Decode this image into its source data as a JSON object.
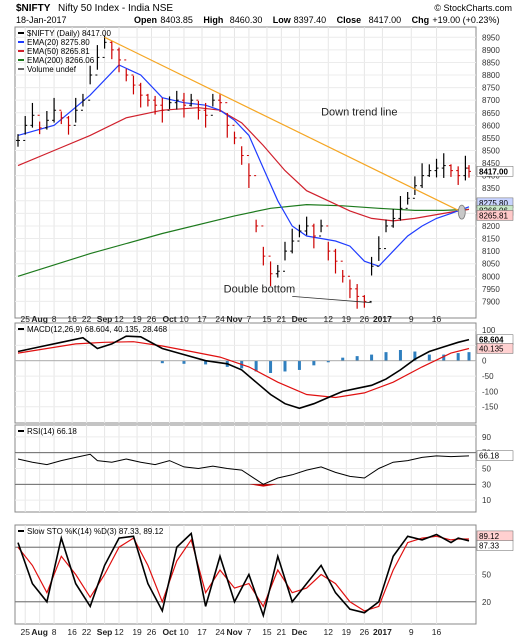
{
  "header": {
    "symbol": "$NIFTY",
    "name": "Nifty 50 Index - India NSE",
    "date": "18-Jan-2017",
    "source": "© StockCharts.com",
    "quote": [
      {
        "label": "Open",
        "value": "8403.85"
      },
      {
        "label": "High",
        "value": "8460.30"
      },
      {
        "label": "Low",
        "value": "8397.40"
      },
      {
        "label": "Close",
        "value": "8417.00"
      },
      {
        "label": "Chg",
        "value": "+19.00 (+0.23%)"
      }
    ]
  },
  "x_axis": {
    "labels": [
      "25",
      "Aug",
      "8",
      "16",
      "22",
      "Sep",
      "12",
      "19",
      "26",
      "Oct",
      "10",
      "17",
      "24",
      "Nov",
      "7",
      "15",
      "21",
      "Dec",
      "12",
      "19",
      "26",
      "2017",
      "9",
      "16"
    ],
    "bold": [
      "Aug",
      "Sep",
      "Oct",
      "Nov",
      "Dec",
      "2017"
    ]
  },
  "colors": {
    "price_up": "#000000",
    "price_down": "#cc0000",
    "ema20": "#1f3cff",
    "ema50": "#d0202c",
    "ema200": "#1d7a1d",
    "trend": "#f5a623",
    "macd_line": "#000000",
    "macd_signal": "#e01010",
    "macd_hist": "#2f7fbf",
    "rsi": "#000000",
    "sto_k": "#000000",
    "sto_d": "#e01010"
  },
  "chart_data": [
    {
      "type": "line",
      "panel": "price",
      "legend": [
        {
          "text": "$NIFTY (Daily) 8417.00",
          "color": "#000000"
        },
        {
          "text": "EMA(20) 8275.80",
          "color": "#1f3cff"
        },
        {
          "text": "EMA(50) 8265.81",
          "color": "#d0202c"
        },
        {
          "text": "EMA(200) 8266.06",
          "color": "#1d7a1d"
        },
        {
          "text": "Volume undef",
          "color": "#666666"
        }
      ],
      "ylim": [
        7850,
        8975
      ],
      "y_ticks": [
        7900,
        7950,
        8000,
        8050,
        8100,
        8150,
        8200,
        8250,
        8300,
        8350,
        8400,
        8450,
        8500,
        8550,
        8600,
        8650,
        8700,
        8750,
        8800,
        8850,
        8900,
        8950
      ],
      "x_index": "trading-day index (0 = ~19 Jul 2016, 125 = 18 Jan 2017)",
      "series": [
        {
          "name": "$NIFTY",
          "style": "bar",
          "x": [
            0,
            2,
            4,
            6,
            8,
            10,
            12,
            14,
            16,
            18,
            20,
            22,
            24,
            26,
            28,
            30,
            32,
            34,
            36,
            38,
            40,
            42,
            44,
            46,
            48,
            50,
            52,
            54,
            56,
            58,
            60,
            62,
            64,
            66,
            68,
            70,
            72,
            74,
            76,
            78,
            80,
            82,
            84,
            86,
            88,
            90,
            92,
            94,
            96,
            98,
            100,
            102,
            104,
            106,
            108,
            110,
            112,
            114,
            116,
            118,
            120,
            122,
            124,
            125
          ],
          "values": [
            8540,
            8600,
            8640,
            8590,
            8620,
            8660,
            8630,
            8600,
            8660,
            8700,
            8800,
            8870,
            8930,
            8900,
            8860,
            8800,
            8760,
            8720,
            8700,
            8680,
            8660,
            8690,
            8700,
            8680,
            8700,
            8660,
            8640,
            8700,
            8690,
            8600,
            8550,
            8480,
            8400,
            8200,
            8080,
            8010,
            8020,
            8100,
            8140,
            8180,
            8200,
            8160,
            8200,
            8100,
            8060,
            8000,
            7950,
            7920,
            7900,
            8040,
            8110,
            8200,
            8230,
            8270,
            8310,
            8360,
            8400,
            8420,
            8430,
            8440,
            8420,
            8400,
            8430,
            8417
          ]
        },
        {
          "name": "EMA(20)",
          "x": [
            0,
            10,
            20,
            28,
            34,
            40,
            46,
            52,
            56,
            60,
            64,
            68,
            72,
            76,
            80,
            84,
            88,
            92,
            96,
            100,
            104,
            108,
            112,
            116,
            120,
            125
          ],
          "values": [
            8560,
            8600,
            8720,
            8840,
            8800,
            8710,
            8690,
            8680,
            8660,
            8620,
            8560,
            8430,
            8300,
            8200,
            8160,
            8150,
            8140,
            8120,
            8060,
            8040,
            8100,
            8160,
            8200,
            8230,
            8250,
            8276
          ]
        },
        {
          "name": "EMA(50)",
          "x": [
            0,
            10,
            20,
            30,
            40,
            50,
            56,
            62,
            68,
            74,
            80,
            86,
            92,
            98,
            104,
            110,
            116,
            120,
            125
          ],
          "values": [
            8440,
            8500,
            8560,
            8630,
            8660,
            8670,
            8660,
            8610,
            8520,
            8420,
            8340,
            8300,
            8260,
            8230,
            8220,
            8230,
            8245,
            8255,
            8266
          ]
        },
        {
          "name": "EMA(200)",
          "x": [
            0,
            20,
            40,
            60,
            70,
            80,
            90,
            100,
            110,
            118,
            125
          ],
          "values": [
            8000,
            8090,
            8170,
            8240,
            8270,
            8285,
            8280,
            8270,
            8262,
            8262,
            8266
          ]
        },
        {
          "name": "Down trend line",
          "x": [
            24,
            123
          ],
          "values": [
            8950,
            8255
          ]
        }
      ],
      "annotations": [
        "Down trend line",
        "Double bottom"
      ],
      "last_value_tags": [
        "8417.00",
        "8275.80",
        "8266.06",
        "8265.81"
      ]
    },
    {
      "type": "line",
      "panel": "macd",
      "legend": [
        {
          "text": "MACD(12,26,9) 68.604, 40.135, 28.468",
          "color": "#000000"
        }
      ],
      "ylim": [
        -190,
        110
      ],
      "y_ticks": [
        -150,
        -100,
        -50,
        0,
        50,
        100
      ],
      "series": [
        {
          "name": "MACD",
          "x": [
            0,
            6,
            12,
            18,
            22,
            26,
            30,
            34,
            40,
            46,
            52,
            58,
            62,
            66,
            70,
            74,
            78,
            82,
            86,
            90,
            94,
            98,
            102,
            106,
            110,
            114,
            118,
            122,
            125
          ],
          "values": [
            30,
            45,
            60,
            75,
            40,
            55,
            80,
            78,
            40,
            20,
            0,
            -10,
            -30,
            -70,
            -110,
            -140,
            -155,
            -140,
            -120,
            -100,
            -90,
            -80,
            -60,
            -30,
            5,
            30,
            45,
            60,
            69
          ]
        },
        {
          "name": "Signal",
          "x": [
            0,
            8,
            16,
            24,
            32,
            40,
            48,
            56,
            64,
            72,
            80,
            88,
            96,
            104,
            112,
            120,
            125
          ],
          "values": [
            25,
            40,
            55,
            60,
            62,
            48,
            30,
            12,
            -20,
            -70,
            -110,
            -120,
            -105,
            -70,
            -20,
            25,
            40
          ]
        },
        {
          "name": "Histogram",
          "style": "bar",
          "x": [
            40,
            46,
            52,
            58,
            62,
            66,
            70,
            74,
            78,
            82,
            86,
            90,
            94,
            98,
            102,
            106,
            110,
            114,
            118,
            122,
            125
          ],
          "values": [
            -8,
            -10,
            -12,
            -20,
            -25,
            -35,
            -40,
            -35,
            -30,
            -15,
            -5,
            10,
            15,
            20,
            28,
            35,
            30,
            20,
            20,
            25,
            28
          ]
        }
      ],
      "last_value_tags": [
        "68.604",
        "40.135"
      ]
    },
    {
      "type": "line",
      "panel": "rsi",
      "legend": [
        {
          "text": "RSI(14) 66.18",
          "color": "#000000"
        }
      ],
      "ylim": [
        0,
        100
      ],
      "y_ticks": [
        10,
        30,
        50,
        70,
        90
      ],
      "series": [
        {
          "name": "RSI(14)",
          "x": [
            0,
            4,
            8,
            12,
            16,
            20,
            22,
            26,
            30,
            34,
            38,
            42,
            46,
            50,
            54,
            58,
            62,
            66,
            68,
            72,
            76,
            80,
            84,
            88,
            92,
            96,
            100,
            104,
            108,
            112,
            116,
            120,
            125
          ],
          "values": [
            62,
            58,
            55,
            60,
            64,
            68,
            60,
            58,
            62,
            58,
            55,
            60,
            52,
            50,
            53,
            50,
            48,
            36,
            30,
            38,
            42,
            48,
            52,
            45,
            40,
            38,
            50,
            58,
            60,
            64,
            66,
            65,
            66
          ]
        }
      ],
      "last_value_tags": [
        "66.18"
      ]
    },
    {
      "type": "line",
      "panel": "slow_sto",
      "legend": [
        {
          "text": "Slow STO %K(14) %D(3) 87.33, 89.12",
          "color": "#000000"
        }
      ],
      "ylim": [
        0,
        100
      ],
      "y_ticks": [
        20,
        50,
        80
      ],
      "series": [
        {
          "name": "%K",
          "x": [
            0,
            4,
            8,
            12,
            16,
            20,
            24,
            28,
            32,
            36,
            40,
            44,
            48,
            52,
            56,
            60,
            64,
            68,
            72,
            76,
            80,
            84,
            88,
            92,
            96,
            100,
            104,
            108,
            112,
            116,
            120,
            122,
            125
          ],
          "values": [
            85,
            40,
            20,
            90,
            40,
            15,
            60,
            90,
            92,
            40,
            10,
            80,
            95,
            15,
            70,
            20,
            50,
            5,
            70,
            20,
            40,
            60,
            30,
            12,
            8,
            20,
            70,
            92,
            88,
            94,
            85,
            90,
            87
          ]
        },
        {
          "name": "%D",
          "x": [
            0,
            4,
            8,
            12,
            16,
            20,
            24,
            28,
            32,
            36,
            40,
            44,
            48,
            52,
            56,
            60,
            64,
            68,
            72,
            76,
            80,
            84,
            88,
            92,
            96,
            100,
            104,
            108,
            112,
            116,
            120,
            122,
            125
          ],
          "values": [
            80,
            60,
            30,
            70,
            50,
            25,
            50,
            80,
            90,
            60,
            20,
            65,
            88,
            30,
            55,
            35,
            40,
            15,
            55,
            30,
            35,
            50,
            40,
            20,
            10,
            15,
            55,
            85,
            90,
            92,
            88,
            89,
            89
          ]
        }
      ],
      "last_value_tags": [
        "89.12",
        "87.33"
      ]
    }
  ]
}
